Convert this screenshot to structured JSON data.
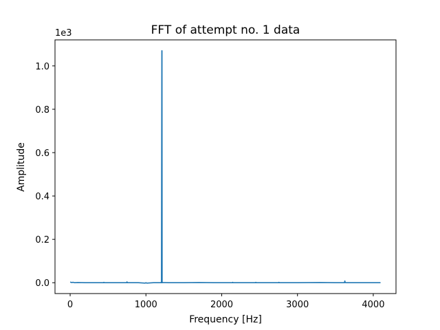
{
  "chart_data": {
    "type": "line",
    "title": "FFT of attempt no. 1 data",
    "xlabel": "Frequency [Hz]",
    "ylabel": "Amplitude",
    "offset_text": "1e3",
    "xlim": [
      -200,
      4300
    ],
    "ylim": [
      -0.05,
      1.12
    ],
    "xticks": [
      0,
      1000,
      2000,
      3000,
      4000
    ],
    "xtick_labels": [
      "0",
      "1000",
      "2000",
      "3000",
      "4000"
    ],
    "yticks": [
      0.0,
      0.2,
      0.4,
      0.6,
      0.8,
      1.0
    ],
    "ytick_labels": [
      "0.0",
      "0.2",
      "0.4",
      "0.6",
      "0.8",
      "1.0"
    ],
    "grid": false,
    "series": [
      {
        "color": "#1f77b4",
        "x": [
          0,
          20,
          40,
          60,
          100,
          200,
          300,
          440,
          445,
          450,
          600,
          745,
          750,
          755,
          900,
          990,
          1000,
          1010,
          1100,
          1195,
          1200,
          1205,
          1210,
          1212,
          1214,
          1216,
          1220,
          1300,
          1500,
          1700,
          1900,
          2140,
          2145,
          2150,
          2300,
          2445,
          2450,
          2455,
          2600,
          2750,
          2755,
          2760,
          3000,
          3300,
          3500,
          3620,
          3625,
          3630,
          3640,
          3800,
          4000,
          4096
        ],
        "y": [
          0.003,
          0.001,
          0.002,
          0.0,
          0.001,
          0.0,
          0.0,
          0.0,
          0.002,
          0.0,
          0.0,
          0.0,
          0.004,
          0.0,
          0.0,
          -0.002,
          0.0,
          -0.002,
          0.0,
          0.0,
          0.002,
          0.0,
          1.07,
          1.07,
          0.0,
          0.0,
          0.001,
          0.0,
          0.0,
          0.001,
          0.0,
          0.0,
          0.002,
          0.0,
          0.0,
          0.0,
          0.002,
          0.0,
          0.0,
          0.0,
          0.002,
          0.0,
          0.0,
          0.001,
          0.0,
          0.0,
          0.008,
          0.001,
          0.0,
          0.0,
          0.0,
          0.0
        ]
      }
    ]
  }
}
